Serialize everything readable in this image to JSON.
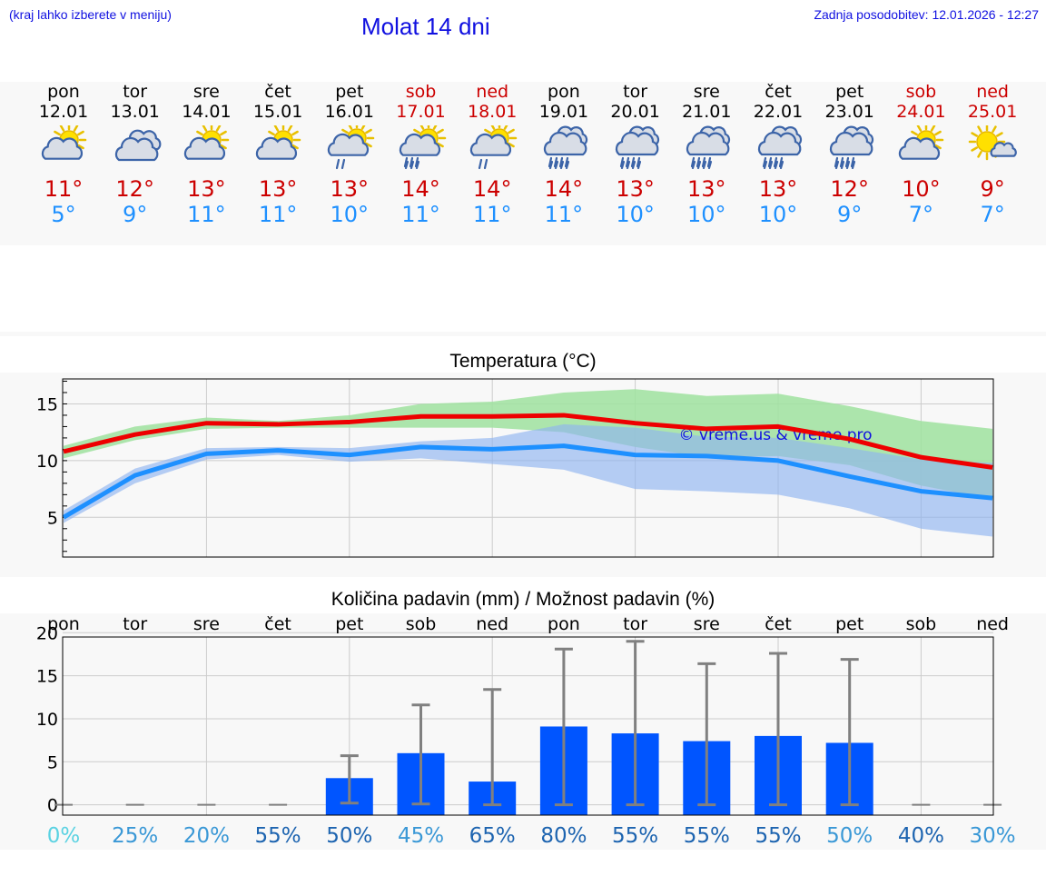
{
  "header": {
    "hint": "(kraj lahko izberete v meniju)",
    "title": "Molat 14 dni",
    "updated": "Zadnja posodobitev: 12.01.2026 - 12:27"
  },
  "days": [
    {
      "name": "pon",
      "date": "12.01",
      "weekend": false,
      "icon": "partly-cloudy-sun-icon",
      "max": "11°",
      "min": "5°"
    },
    {
      "name": "tor",
      "date": "13.01",
      "weekend": false,
      "icon": "cloudy-icon",
      "max": "12°",
      "min": "9°"
    },
    {
      "name": "sre",
      "date": "14.01",
      "weekend": false,
      "icon": "partly-cloudy-sun-icon",
      "max": "13°",
      "min": "11°"
    },
    {
      "name": "čet",
      "date": "15.01",
      "weekend": false,
      "icon": "partly-cloudy-sun-icon",
      "max": "13°",
      "min": "11°"
    },
    {
      "name": "pet",
      "date": "16.01",
      "weekend": false,
      "icon": "sun-cloud-light-rain-icon",
      "max": "13°",
      "min": "10°"
    },
    {
      "name": "sob",
      "date": "17.01",
      "weekend": true,
      "icon": "sun-cloud-rain-icon",
      "max": "14°",
      "min": "11°"
    },
    {
      "name": "ned",
      "date": "18.01",
      "weekend": true,
      "icon": "sun-cloud-light-rain-icon",
      "max": "14°",
      "min": "11°"
    },
    {
      "name": "pon",
      "date": "19.01",
      "weekend": false,
      "icon": "cloud-rain-icon",
      "max": "14°",
      "min": "11°"
    },
    {
      "name": "tor",
      "date": "20.01",
      "weekend": false,
      "icon": "cloud-rain-icon",
      "max": "13°",
      "min": "10°"
    },
    {
      "name": "sre",
      "date": "21.01",
      "weekend": false,
      "icon": "cloud-rain-icon",
      "max": "13°",
      "min": "10°"
    },
    {
      "name": "čet",
      "date": "22.01",
      "weekend": false,
      "icon": "cloud-rain-icon",
      "max": "13°",
      "min": "10°"
    },
    {
      "name": "pet",
      "date": "23.01",
      "weekend": false,
      "icon": "cloud-rain-icon",
      "max": "12°",
      "min": "9°"
    },
    {
      "name": "sob",
      "date": "24.01",
      "weekend": true,
      "icon": "partly-cloudy-sun-icon",
      "max": "10°",
      "min": "7°"
    },
    {
      "name": "ned",
      "date": "25.01",
      "weekend": true,
      "icon": "sun-small-cloud-icon",
      "max": "9°",
      "min": "7°"
    }
  ],
  "colors": {
    "max_text": "#cc0000",
    "min_text": "#1e90ff",
    "max_line": "#ee0000",
    "min_line": "#1e90ff",
    "max_band": "#9fe29f",
    "min_band": "#8fb4f0",
    "bar": "#0055ff",
    "errorbar": "#808080",
    "watermark": "#1010e0"
  },
  "chart_data": [
    {
      "type": "line",
      "title": "Temperatura (°C)",
      "categories": [
        "pon",
        "tor",
        "sre",
        "čet",
        "pet",
        "sob",
        "ned",
        "pon",
        "tor",
        "sre",
        "čet",
        "pet",
        "sob",
        "ned"
      ],
      "ylim": [
        1.5,
        17.2
      ],
      "yticks": [
        5,
        10,
        15
      ],
      "watermark": "© vreme.us & vreme.pro",
      "series": [
        {
          "name": "max",
          "values": [
            10.8,
            12.3,
            13.3,
            13.2,
            13.4,
            13.9,
            13.9,
            14.0,
            13.3,
            12.8,
            13.0,
            11.9,
            10.3,
            9.4
          ],
          "band_low": [
            10.2,
            11.8,
            12.8,
            12.9,
            12.9,
            12.9,
            12.9,
            12.5,
            11.2,
            10.3,
            10.4,
            9.6,
            7.8,
            6.6
          ],
          "band_high": [
            11.3,
            13.0,
            13.8,
            13.5,
            14.0,
            15.0,
            15.2,
            16.0,
            16.3,
            15.7,
            15.9,
            14.8,
            13.5,
            12.8
          ]
        },
        {
          "name": "min",
          "values": [
            5.0,
            8.7,
            10.6,
            10.9,
            10.5,
            11.2,
            11.0,
            11.3,
            10.5,
            10.4,
            10.0,
            8.6,
            7.3,
            6.7
          ],
          "band_low": [
            4.5,
            8.0,
            10.1,
            10.5,
            9.9,
            10.2,
            9.7,
            9.2,
            7.5,
            7.3,
            7.0,
            5.8,
            4.0,
            3.3
          ],
          "band_high": [
            5.6,
            9.3,
            11.1,
            11.2,
            11.1,
            11.7,
            12.0,
            13.2,
            12.9,
            12.1,
            12.0,
            11.1,
            10.1,
            9.8
          ]
        }
      ]
    },
    {
      "type": "bar",
      "title": "Količina padavin (mm) / Možnost padavin (%)",
      "categories": [
        "pon",
        "tor",
        "sre",
        "čet",
        "pet",
        "sob",
        "ned",
        "pon",
        "tor",
        "sre",
        "čet",
        "pet",
        "sob",
        "ned"
      ],
      "ylim": [
        -1.2,
        19.5
      ],
      "yticks": [
        0,
        5,
        10,
        15,
        20
      ],
      "values": [
        0,
        0,
        0,
        0,
        3.1,
        6.0,
        2.7,
        9.1,
        8.3,
        7.4,
        8.0,
        7.2,
        0,
        0
      ],
      "err_low": [
        0,
        0,
        0,
        0,
        0.2,
        0.1,
        0,
        0,
        0,
        0,
        0,
        0,
        0,
        0
      ],
      "err_high": [
        0,
        0,
        0,
        0,
        5.7,
        11.6,
        13.4,
        18.1,
        19.0,
        16.4,
        17.6,
        16.9,
        0,
        0
      ],
      "probability": [
        "0%",
        "25%",
        "20%",
        "55%",
        "50%",
        "45%",
        "65%",
        "80%",
        "55%",
        "55%",
        "55%",
        "50%",
        "40%",
        "30%"
      ],
      "probability_colors": [
        "#5ad2e2",
        "#3a98d6",
        "#3a98d6",
        "#1d64b0",
        "#1d64b0",
        "#3a98d6",
        "#1d64b0",
        "#1d64b0",
        "#1d64b0",
        "#1d64b0",
        "#1d64b0",
        "#3a98d6",
        "#1d64b0",
        "#3a98d6"
      ]
    }
  ]
}
